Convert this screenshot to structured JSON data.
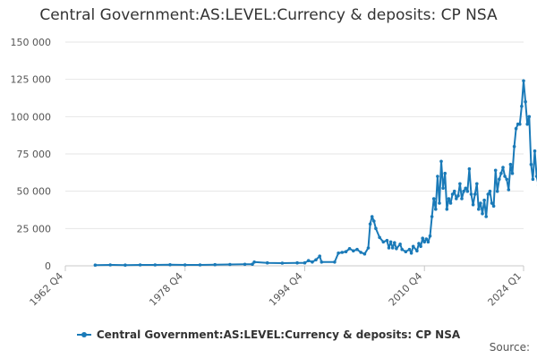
{
  "chart_data": {
    "type": "line",
    "title": "Central Government:AS:LEVEL:Currency & deposits: CP NSA",
    "xlabel": "",
    "ylabel": "",
    "ylim": [
      0,
      150000
    ],
    "y_ticks": [
      0,
      25000,
      50000,
      75000,
      100000,
      125000,
      150000
    ],
    "y_tick_labels": [
      "0",
      "25 000",
      "50 000",
      "75 000",
      "100 000",
      "125 000",
      "150 000"
    ],
    "x_ticks": [
      "1962 Q4",
      "1978 Q4",
      "1994 Q4",
      "2010 Q4",
      "2024 Q1"
    ],
    "grid": true,
    "legend_position": "bottom",
    "series": [
      {
        "name": "Central Government:AS:LEVEL:Currency & deposits: CP NSA",
        "color": "#1a7ab8",
        "points": [
          [
            "1966 Q4",
            500
          ],
          [
            "1968 Q4",
            600
          ],
          [
            "1970 Q4",
            500
          ],
          [
            "1972 Q4",
            600
          ],
          [
            "1974 Q4",
            600
          ],
          [
            "1976 Q4",
            700
          ],
          [
            "1978 Q4",
            600
          ],
          [
            "1980 Q4",
            600
          ],
          [
            "1982 Q4",
            800
          ],
          [
            "1984 Q4",
            900
          ],
          [
            "1986 Q4",
            1000
          ],
          [
            "1987 Q4",
            1100
          ],
          [
            "1988 Q1",
            2500
          ],
          [
            "1989 Q4",
            2000
          ],
          [
            "1991 Q4",
            1800
          ],
          [
            "1993 Q4",
            2000
          ],
          [
            "1994 Q4",
            2000
          ],
          [
            "1995 Q2",
            3500
          ],
          [
            "1995 Q4",
            2600
          ],
          [
            "1996 Q2",
            4000
          ],
          [
            "1996 Q4",
            6500
          ],
          [
            "1997 Q1",
            2500
          ],
          [
            "1998 Q4",
            2500
          ],
          [
            "1999 Q2",
            8500
          ],
          [
            "1999 Q4",
            9000
          ],
          [
            "2000 Q2",
            9500
          ],
          [
            "2000 Q4",
            11500
          ],
          [
            "2001 Q2",
            10000
          ],
          [
            "2001 Q4",
            11000
          ],
          [
            "2002 Q2",
            9000
          ],
          [
            "2002 Q4",
            8000
          ],
          [
            "2003 Q2",
            12000
          ],
          [
            "2003 Q3",
            28000
          ],
          [
            "2003 Q4",
            33000
          ],
          [
            "2004 Q1",
            30000
          ],
          [
            "2004 Q2",
            25000
          ],
          [
            "2004 Q4",
            19000
          ],
          [
            "2005 Q2",
            16000
          ],
          [
            "2005 Q4",
            17000
          ],
          [
            "2006 Q1",
            12000
          ],
          [
            "2006 Q2",
            16000
          ],
          [
            "2006 Q3",
            12000
          ],
          [
            "2006 Q4",
            15500
          ],
          [
            "2007 Q1",
            11500
          ],
          [
            "2007 Q3",
            14500
          ],
          [
            "2007 Q4",
            11000
          ],
          [
            "2008 Q2",
            9500
          ],
          [
            "2008 Q4",
            11000
          ],
          [
            "2009 Q1",
            8500
          ],
          [
            "2009 Q2",
            13000
          ],
          [
            "2009 Q4",
            10000
          ],
          [
            "2010 Q1",
            15000
          ],
          [
            "2010 Q2",
            13000
          ],
          [
            "2010 Q3",
            18500
          ],
          [
            "2010 Q4",
            16000
          ],
          [
            "2011 Q1",
            18000
          ],
          [
            "2011 Q2",
            16000
          ],
          [
            "2011 Q3",
            20000
          ],
          [
            "2011 Q4",
            33000
          ],
          [
            "2012 Q1",
            45000
          ],
          [
            "2012 Q2",
            38000
          ],
          [
            "2012 Q3",
            60000
          ],
          [
            "2012 Q4",
            42000
          ],
          [
            "2013 Q1",
            70000
          ],
          [
            "2013 Q2",
            52000
          ],
          [
            "2013 Q3",
            62000
          ],
          [
            "2013 Q4",
            38000
          ],
          [
            "2014 Q1",
            45000
          ],
          [
            "2014 Q2",
            42000
          ],
          [
            "2014 Q3",
            48000
          ],
          [
            "2014 Q4",
            50000
          ],
          [
            "2015 Q1",
            45000
          ],
          [
            "2015 Q2",
            47000
          ],
          [
            "2015 Q3",
            55000
          ],
          [
            "2015 Q4",
            45000
          ],
          [
            "2016 Q1",
            50000
          ],
          [
            "2016 Q2",
            52000
          ],
          [
            "2016 Q3",
            50000
          ],
          [
            "2016 Q4",
            65000
          ],
          [
            "2017 Q1",
            48000
          ],
          [
            "2017 Q2",
            41000
          ],
          [
            "2017 Q3",
            48000
          ],
          [
            "2017 Q4",
            55000
          ],
          [
            "2018 Q1",
            38000
          ],
          [
            "2018 Q2",
            42000
          ],
          [
            "2018 Q3",
            35000
          ],
          [
            "2018 Q4",
            44000
          ],
          [
            "2019 Q1",
            33000
          ],
          [
            "2019 Q2",
            48000
          ],
          [
            "2019 Q3",
            50000
          ],
          [
            "2019 Q4",
            42000
          ],
          [
            "2020 Q1",
            40000
          ],
          [
            "2020 Q2",
            64000
          ],
          [
            "2020 Q3",
            50000
          ],
          [
            "2020 Q4",
            58000
          ],
          [
            "2021 Q1",
            62000
          ],
          [
            "2021 Q2",
            66000
          ],
          [
            "2021 Q3",
            60000
          ],
          [
            "2021 Q4",
            58000
          ],
          [
            "2022 Q1",
            51000
          ],
          [
            "2022 Q2",
            68000
          ],
          [
            "2022 Q3",
            62000
          ],
          [
            "2022 Q4",
            80000
          ],
          [
            "2023 Q1",
            92000
          ],
          [
            "2023 Q2",
            95000
          ],
          [
            "2023 Q3",
            95000
          ],
          [
            "2023 Q4",
            107000
          ],
          [
            "2024 Q1",
            124000
          ],
          [
            "2024 Q2",
            110000
          ],
          [
            "2024 Q3",
            95000
          ],
          [
            "2024 Q4",
            100000
          ],
          [
            "2025 Q1",
            68000
          ],
          [
            "2025 Q2",
            58000
          ],
          [
            "2025 Q3",
            77000
          ],
          [
            "2025 Q4",
            60000
          ],
          [
            "2026 Q1",
            54000
          ],
          [
            "2026 Q2",
            60000
          ]
        ]
      }
    ]
  },
  "legend": {
    "label": "Central Government:AS:LEVEL:Currency & deposits: CP NSA"
  },
  "source": "Source:"
}
